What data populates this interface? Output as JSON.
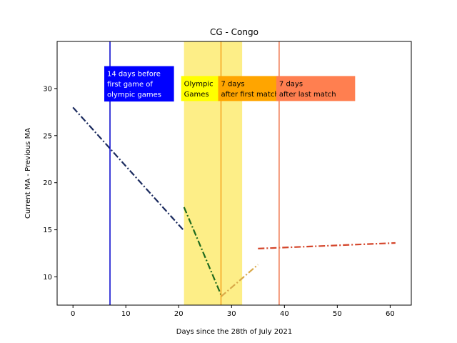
{
  "chart_data": {
    "type": "line",
    "title": "CG - Congo",
    "xlabel": "Days since the 28th of July 2021",
    "ylabel": "Current MA - Previous MA",
    "xlim": [
      -3,
      64
    ],
    "ylim": [
      7,
      35
    ],
    "xticks": [
      0,
      10,
      20,
      30,
      40,
      50,
      60
    ],
    "yticks": [
      10,
      15,
      20,
      25,
      30
    ],
    "grid": false,
    "shaded_region": {
      "x0": 21,
      "x1": 32,
      "color": "#fdec7a"
    },
    "vlines": [
      {
        "x": 7,
        "color": "#0000cc"
      },
      {
        "x": 28,
        "color": "#f5a21d"
      },
      {
        "x": 39,
        "color": "#f07850"
      }
    ],
    "series": [
      {
        "color": "#1a2a5e",
        "x": [
          0,
          21
        ],
        "y": [
          28.0,
          14.9
        ]
      },
      {
        "color": "#1e6a1e",
        "x": [
          21,
          28
        ],
        "y": [
          17.4,
          8.1
        ]
      },
      {
        "color": "#d9a94a",
        "x": [
          28,
          35
        ],
        "y": [
          7.9,
          11.3
        ]
      },
      {
        "color": "#d4452a",
        "x": [
          35,
          61
        ],
        "y": [
          13.0,
          13.6
        ]
      }
    ],
    "annotations": [
      {
        "lines": [
          "14 days before",
          "first game of",
          "olympic games"
        ],
        "x": 7,
        "y": 30.5,
        "bg": "#0000ff",
        "fg": "#ffffff"
      },
      {
        "lines": [
          "Olympic",
          "Games"
        ],
        "x": 21,
        "y": 30.0,
        "bg": "#ffff00",
        "fg": "#000000"
      },
      {
        "lines": [
          "7 days",
          "after first match"
        ],
        "x": 28,
        "y": 30.0,
        "bg": "#ffa500",
        "fg": "#000000"
      },
      {
        "lines": [
          "7 days",
          "after last match"
        ],
        "x": 39,
        "y": 30.0,
        "bg": "#ff7f50",
        "fg": "#000000"
      }
    ]
  }
}
